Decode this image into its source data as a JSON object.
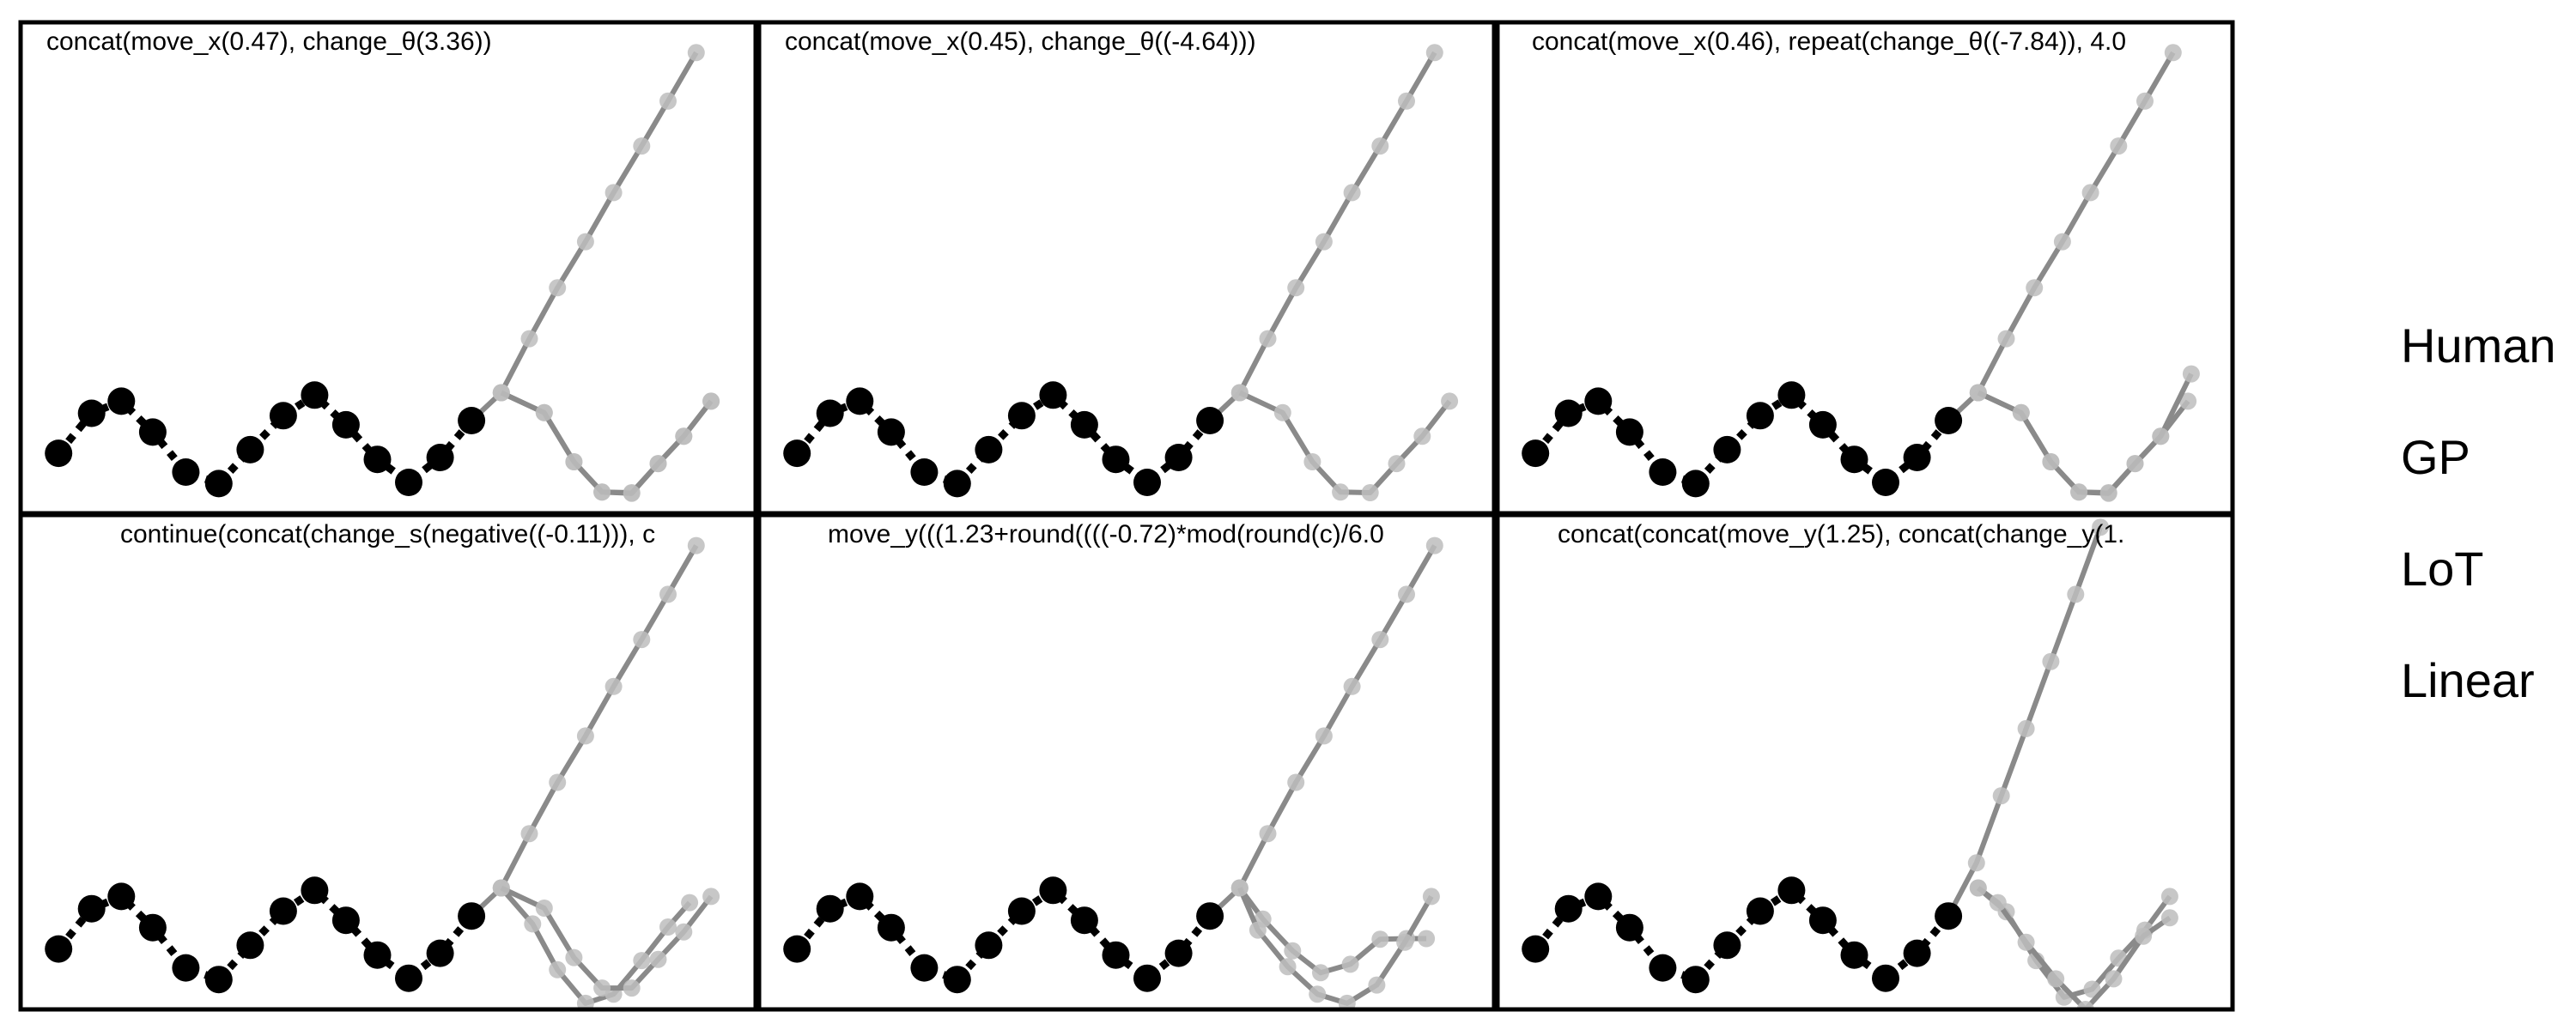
{
  "chart_data": [
    {
      "type": "scatter",
      "title": "concat(move_x(0.47), change_θ(3.36))",
      "observed": [
        [
          0.46,
          5.29
        ],
        [
          0.86,
          5.95
        ],
        [
          1.22,
          6.15
        ],
        [
          1.6,
          5.64
        ],
        [
          2.0,
          4.98
        ],
        [
          2.4,
          4.79
        ],
        [
          2.78,
          5.35
        ],
        [
          3.18,
          5.91
        ],
        [
          3.56,
          6.25
        ],
        [
          3.94,
          5.76
        ],
        [
          4.32,
          5.19
        ],
        [
          4.7,
          4.81
        ],
        [
          5.08,
          5.22
        ],
        [
          5.46,
          5.83
        ]
      ],
      "predictions": [
        [
          [
            5.46,
            5.83
          ],
          [
            5.82,
            6.29
          ],
          [
            6.16,
            7.18
          ],
          [
            6.5,
            8.02
          ],
          [
            6.84,
            8.78
          ],
          [
            7.18,
            9.59
          ],
          [
            7.52,
            10.36
          ],
          [
            7.84,
            11.1
          ],
          [
            8.18,
            11.9
          ]
        ],
        [
          [
            5.82,
            6.29
          ],
          [
            6.34,
            5.96
          ],
          [
            6.7,
            5.15
          ],
          [
            7.04,
            4.65
          ],
          [
            7.4,
            4.64
          ],
          [
            7.72,
            5.12
          ],
          [
            8.03,
            5.57
          ],
          [
            8.36,
            6.15
          ]
        ],
        [
          [
            5.82,
            6.29
          ],
          [
            6.34,
            5.96
          ],
          [
            6.7,
            5.15
          ],
          [
            7.04,
            4.65
          ],
          [
            7.4,
            4.63
          ],
          [
            7.72,
            5.12
          ],
          [
            8.03,
            5.57
          ],
          [
            8.36,
            6.15
          ]
        ]
      ],
      "xlim": [
        0,
        8.9
      ],
      "ylim": [
        4.3,
        12.4
      ]
    },
    {
      "type": "scatter",
      "title": "concat(move_x(0.45), change_θ((-4.64)))",
      "observed": [
        [
          0.46,
          5.29
        ],
        [
          0.86,
          5.95
        ],
        [
          1.22,
          6.15
        ],
        [
          1.6,
          5.64
        ],
        [
          2.0,
          4.98
        ],
        [
          2.4,
          4.79
        ],
        [
          2.78,
          5.35
        ],
        [
          3.18,
          5.91
        ],
        [
          3.56,
          6.25
        ],
        [
          3.94,
          5.76
        ],
        [
          4.32,
          5.19
        ],
        [
          4.7,
          4.81
        ],
        [
          5.08,
          5.22
        ],
        [
          5.46,
          5.83
        ]
      ],
      "predictions": [
        [
          [
            5.46,
            5.83
          ],
          [
            5.82,
            6.29
          ],
          [
            6.16,
            7.18
          ],
          [
            6.5,
            8.02
          ],
          [
            6.84,
            8.78
          ],
          [
            7.18,
            9.59
          ],
          [
            7.52,
            10.36
          ],
          [
            7.84,
            11.1
          ],
          [
            8.18,
            11.9
          ]
        ],
        [
          [
            5.82,
            6.29
          ],
          [
            6.34,
            5.96
          ],
          [
            6.7,
            5.15
          ],
          [
            7.04,
            4.65
          ],
          [
            7.4,
            4.64
          ],
          [
            7.72,
            5.12
          ],
          [
            8.03,
            5.57
          ],
          [
            8.36,
            6.15
          ]
        ]
      ],
      "xlim": [
        0,
        8.9
      ],
      "ylim": [
        4.3,
        12.4
      ]
    },
    {
      "type": "scatter",
      "title": "concat(move_x(0.46), repeat(change_θ((-7.84)), 4.0",
      "observed": [
        [
          0.46,
          5.29
        ],
        [
          0.86,
          5.95
        ],
        [
          1.22,
          6.15
        ],
        [
          1.6,
          5.64
        ],
        [
          2.0,
          4.98
        ],
        [
          2.4,
          4.79
        ],
        [
          2.78,
          5.35
        ],
        [
          3.18,
          5.91
        ],
        [
          3.56,
          6.25
        ],
        [
          3.94,
          5.76
        ],
        [
          4.32,
          5.19
        ],
        [
          4.7,
          4.81
        ],
        [
          5.08,
          5.22
        ],
        [
          5.46,
          5.83
        ]
      ],
      "predictions": [
        [
          [
            5.46,
            5.83
          ],
          [
            5.82,
            6.29
          ],
          [
            6.16,
            7.18
          ],
          [
            6.5,
            8.02
          ],
          [
            6.84,
            8.78
          ],
          [
            7.18,
            9.59
          ],
          [
            7.52,
            10.36
          ],
          [
            7.84,
            11.1
          ],
          [
            8.18,
            11.9
          ]
        ],
        [
          [
            5.82,
            6.29
          ],
          [
            6.34,
            5.96
          ],
          [
            6.7,
            5.15
          ],
          [
            7.04,
            4.65
          ],
          [
            7.4,
            4.64
          ],
          [
            7.72,
            5.12
          ],
          [
            8.03,
            5.57
          ],
          [
            8.36,
            6.15
          ]
        ],
        [
          [
            5.82,
            6.29
          ],
          [
            6.34,
            5.96
          ],
          [
            6.7,
            5.15
          ],
          [
            7.04,
            4.65
          ],
          [
            7.4,
            4.63
          ],
          [
            7.72,
            5.12
          ],
          [
            8.03,
            5.57
          ],
          [
            8.4,
            6.6
          ]
        ]
      ],
      "xlim": [
        0,
        8.9
      ],
      "ylim": [
        4.3,
        12.4
      ]
    },
    {
      "type": "scatter",
      "title": "continue(concat(change_s(negative((-0.11))), c",
      "observed": [
        [
          0.46,
          5.29
        ],
        [
          0.86,
          5.95
        ],
        [
          1.22,
          6.15
        ],
        [
          1.6,
          5.64
        ],
        [
          2.0,
          4.98
        ],
        [
          2.4,
          4.79
        ],
        [
          2.78,
          5.35
        ],
        [
          3.18,
          5.91
        ],
        [
          3.56,
          6.25
        ],
        [
          3.94,
          5.76
        ],
        [
          4.32,
          5.19
        ],
        [
          4.7,
          4.81
        ],
        [
          5.08,
          5.22
        ],
        [
          5.46,
          5.83
        ]
      ],
      "predictions": [
        [
          [
            5.46,
            5.83
          ],
          [
            5.82,
            6.29
          ],
          [
            6.16,
            7.18
          ],
          [
            6.5,
            8.02
          ],
          [
            6.84,
            8.78
          ],
          [
            7.18,
            9.59
          ],
          [
            7.52,
            10.36
          ],
          [
            7.84,
            11.1
          ],
          [
            8.18,
            11.9
          ]
        ],
        [
          [
            5.82,
            6.29
          ],
          [
            6.2,
            5.7
          ],
          [
            6.5,
            4.95
          ],
          [
            6.84,
            4.4
          ],
          [
            7.18,
            4.55
          ],
          [
            7.52,
            5.1
          ],
          [
            7.84,
            5.65
          ],
          [
            8.1,
            6.05
          ]
        ],
        [
          [
            5.82,
            6.29
          ],
          [
            6.34,
            5.96
          ],
          [
            6.7,
            5.15
          ],
          [
            7.04,
            4.65
          ],
          [
            7.4,
            4.65
          ],
          [
            7.72,
            5.12
          ],
          [
            8.03,
            5.57
          ],
          [
            8.36,
            6.15
          ]
        ]
      ],
      "xlim": [
        0,
        8.9
      ],
      "ylim": [
        4.3,
        12.4
      ]
    },
    {
      "type": "scatter",
      "title": "move_y(((1.23+round((((-0.72)*mod(round(c)/6.0",
      "observed": [
        [
          0.46,
          5.29
        ],
        [
          0.86,
          5.95
        ],
        [
          1.22,
          6.15
        ],
        [
          1.6,
          5.64
        ],
        [
          2.0,
          4.98
        ],
        [
          2.4,
          4.79
        ],
        [
          2.78,
          5.35
        ],
        [
          3.18,
          5.91
        ],
        [
          3.56,
          6.25
        ],
        [
          3.94,
          5.76
        ],
        [
          4.32,
          5.19
        ],
        [
          4.7,
          4.81
        ],
        [
          5.08,
          5.22
        ],
        [
          5.46,
          5.83
        ]
      ],
      "predictions": [
        [
          [
            5.46,
            5.83
          ],
          [
            5.82,
            6.29
          ],
          [
            6.16,
            7.18
          ],
          [
            6.5,
            8.02
          ],
          [
            6.84,
            8.78
          ],
          [
            7.18,
            9.59
          ],
          [
            7.52,
            10.36
          ],
          [
            7.84,
            11.1
          ],
          [
            8.18,
            11.9
          ]
        ],
        [
          [
            5.82,
            6.29
          ],
          [
            6.1,
            5.78
          ],
          [
            6.46,
            5.26
          ],
          [
            6.8,
            4.9
          ],
          [
            7.16,
            5.04
          ],
          [
            7.52,
            5.45
          ],
          [
            7.84,
            5.46
          ],
          [
            8.08,
            5.46
          ]
        ],
        [
          [
            5.82,
            6.29
          ],
          [
            6.04,
            5.6
          ],
          [
            6.4,
            5.0
          ],
          [
            6.76,
            4.55
          ],
          [
            7.12,
            4.4
          ],
          [
            7.48,
            4.7
          ],
          [
            7.82,
            5.4
          ],
          [
            8.14,
            6.15
          ]
        ]
      ],
      "xlim": [
        0,
        8.9
      ],
      "ylim": [
        4.3,
        12.4
      ]
    },
    {
      "type": "scatter",
      "title": "concat(concat(move_y(1.25), concat(change_y(1.",
      "observed": [
        [
          0.46,
          5.29
        ],
        [
          0.86,
          5.95
        ],
        [
          1.22,
          6.15
        ],
        [
          1.6,
          5.64
        ],
        [
          2.0,
          4.98
        ],
        [
          2.4,
          4.79
        ],
        [
          2.78,
          5.35
        ],
        [
          3.18,
          5.91
        ],
        [
          3.56,
          6.25
        ],
        [
          3.94,
          5.76
        ],
        [
          4.32,
          5.19
        ],
        [
          4.7,
          4.81
        ],
        [
          5.08,
          5.22
        ],
        [
          5.46,
          5.83
        ]
      ],
      "predictions": [
        [
          [
            5.46,
            5.83
          ],
          [
            5.8,
            6.7
          ],
          [
            6.1,
            7.8
          ],
          [
            6.4,
            8.9
          ],
          [
            6.7,
            10.0
          ],
          [
            7.0,
            11.1
          ],
          [
            7.3,
            12.2
          ]
        ],
        [
          [
            5.82,
            6.29
          ],
          [
            6.16,
            5.9
          ],
          [
            6.52,
            5.1
          ],
          [
            6.86,
            4.5
          ],
          [
            7.2,
            4.63
          ],
          [
            7.52,
            5.14
          ],
          [
            7.84,
            5.6
          ],
          [
            8.14,
            6.15
          ]
        ],
        [
          [
            5.82,
            6.29
          ],
          [
            6.06,
            6.05
          ],
          [
            6.4,
            5.4
          ],
          [
            6.76,
            4.8
          ],
          [
            7.12,
            4.3
          ],
          [
            7.46,
            4.8
          ],
          [
            7.82,
            5.5
          ],
          [
            8.14,
            5.8
          ]
        ]
      ],
      "xlim": [
        0,
        8.9
      ],
      "ylim": [
        4.3,
        12.4
      ]
    }
  ],
  "legend": [
    "Human",
    "GP",
    "LoT",
    "Linear"
  ],
  "colors": {
    "observed": "#000000",
    "prediction_line": "#8a8a8a",
    "prediction_point": "#bdbdbd",
    "frame": "#000000"
  }
}
